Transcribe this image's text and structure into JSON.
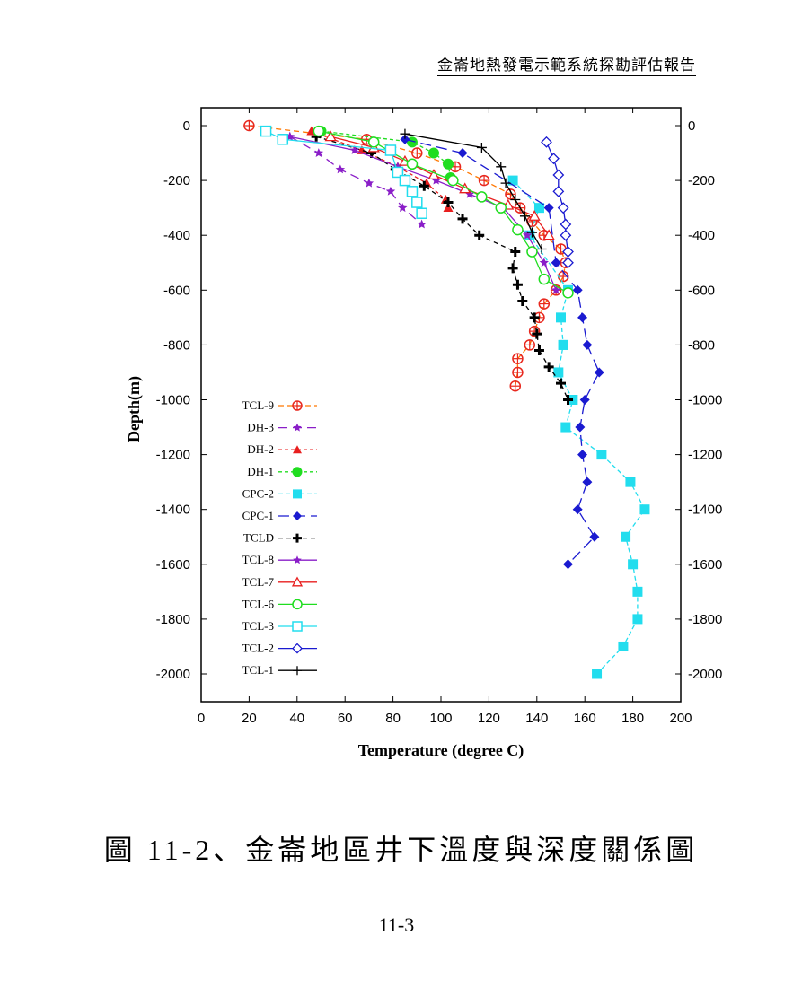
{
  "page": {
    "header": "金崙地熱發電示範系統探勘評估報告",
    "caption": "圖 11-2、金崙地區井下溫度與深度關係圖",
    "page_number": "11-3"
  },
  "chart_data": {
    "type": "scatter",
    "title": "",
    "xlabel": "Temperature (degree C)",
    "ylabel": "Depth(m)",
    "xlim": [
      0,
      200
    ],
    "ylim": [
      -2100,
      0
    ],
    "x_ticks": [
      0,
      20,
      40,
      60,
      80,
      100,
      120,
      140,
      160,
      180,
      200
    ],
    "y_ticks": [
      0,
      -200,
      -400,
      -600,
      -800,
      -1000,
      -1200,
      -1400,
      -1600,
      -1800,
      -2000
    ],
    "right_axis_mirrored": true,
    "grid": false,
    "legend_placement": "bottom-left",
    "series": [
      {
        "name": "TCL-9",
        "color": "#e8281e",
        "line_color": "#ff7700",
        "dash": "6,4",
        "marker": "circle-cross",
        "x": [
          20,
          69,
          90,
          106,
          118,
          129,
          133,
          138,
          143,
          150,
          152,
          151,
          148,
          143,
          141,
          139,
          137,
          132,
          132,
          131
        ],
        "y": [
          0,
          -50,
          -100,
          -150,
          -200,
          -250,
          -300,
          -350,
          -400,
          -450,
          -500,
          -550,
          -600,
          -650,
          -700,
          -750,
          -800,
          -850,
          -900,
          -950
        ]
      },
      {
        "name": "DH-3",
        "color": "#8a1ec8",
        "line_color": "#8a1ec8",
        "dash": "10,6",
        "marker": "star",
        "x": [
          37,
          49,
          58,
          70,
          79,
          84,
          92
        ],
        "y": [
          -40,
          -100,
          -160,
          -210,
          -240,
          -300,
          -360
        ]
      },
      {
        "name": "DH-2",
        "color": "#e81e1e",
        "line_color": "#e81e1e",
        "dash": "4,3",
        "marker": "triangle-filled",
        "x": [
          46,
          67,
          82,
          94,
          102,
          103
        ],
        "y": [
          -20,
          -90,
          -150,
          -210,
          -270,
          -300
        ]
      },
      {
        "name": "DH-1",
        "color": "#20dd20",
        "line_color": "#20dd20",
        "dash": "4,3",
        "marker": "circle-filled",
        "x": [
          50,
          88,
          97,
          103,
          104
        ],
        "y": [
          -20,
          -60,
          -100,
          -140,
          -190
        ]
      },
      {
        "name": "CPC-2",
        "color": "#22ddee",
        "line_color": "#22ddee",
        "dash": "5,3",
        "marker": "square-filled",
        "x": [
          130,
          141,
          137,
          153,
          150,
          151,
          151,
          149,
          155,
          152,
          167,
          179,
          185,
          177,
          180,
          182,
          182,
          176,
          165
        ],
        "y": [
          -200,
          -300,
          -400,
          -600,
          -700,
          -800,
          -800,
          -900,
          -1000,
          -1100,
          -1200,
          -1300,
          -1400,
          -1500,
          -1600,
          -1700,
          -1800,
          -1900,
          -2000
        ]
      },
      {
        "name": "CPC-1",
        "color": "#1a1ad0",
        "line_color": "#1a1ad0",
        "dash": "12,6",
        "marker": "diamond-filled",
        "x": [
          85,
          109,
          145,
          148,
          157,
          159,
          161,
          166,
          160,
          158,
          159,
          161,
          157,
          164,
          153
        ],
        "y": [
          -50,
          -100,
          -300,
          -500,
          -600,
          -700,
          -800,
          -900,
          -1000,
          -1100,
          -1200,
          -1300,
          -1400,
          -1500,
          -1600
        ]
      },
      {
        "name": "TCLD",
        "color": "#000000",
        "line_color": "#000000",
        "dash": "5,4",
        "marker": "plus-bold",
        "x": [
          48,
          71,
          81,
          93,
          103,
          109,
          116,
          131,
          130,
          132,
          134,
          139,
          140,
          141,
          145,
          150,
          153
        ],
        "y": [
          -40,
          -100,
          -160,
          -220,
          -280,
          -340,
          -400,
          -460,
          -520,
          -580,
          -640,
          -700,
          -760,
          -820,
          -880,
          -940,
          -1000
        ]
      },
      {
        "name": "TCL-8",
        "color": "#8a1ec8",
        "line_color": "#8a1ec8",
        "dash": "",
        "marker": "star",
        "x": [
          37,
          64,
          82,
          98,
          112,
          126,
          136,
          143,
          148
        ],
        "y": [
          -40,
          -90,
          -150,
          -200,
          -250,
          -300,
          -400,
          -500,
          -600
        ]
      },
      {
        "name": "TCL-7",
        "color": "#e81e1e",
        "line_color": "#e81e1e",
        "dash": "",
        "marker": "triangle-open",
        "x": [
          54,
          72,
          85,
          97,
          110,
          128,
          139,
          145
        ],
        "y": [
          -40,
          -80,
          -130,
          -180,
          -230,
          -290,
          -330,
          -400
        ]
      },
      {
        "name": "TCL-6",
        "color": "#20dd20",
        "line_color": "#20dd20",
        "dash": "",
        "marker": "circle-open",
        "x": [
          49,
          72,
          88,
          105,
          117,
          125,
          132,
          138,
          143,
          153
        ],
        "y": [
          -20,
          -60,
          -140,
          -200,
          -260,
          -300,
          -380,
          -460,
          -560,
          -610
        ]
      },
      {
        "name": "TCL-3",
        "color": "#22ddee",
        "line_color": "#22ddee",
        "dash": "",
        "marker": "square-open",
        "x": [
          27,
          34,
          79,
          82,
          85,
          88,
          90,
          92
        ],
        "y": [
          -20,
          -50,
          -90,
          -170,
          -200,
          -240,
          -280,
          -320
        ]
      },
      {
        "name": "TCL-2",
        "color": "#1a1ad0",
        "line_color": "#1a1ad0",
        "dash": "",
        "marker": "diamond-open",
        "x": [
          144,
          147,
          149,
          149,
          151,
          152,
          152,
          153,
          153
        ],
        "y": [
          -60,
          -120,
          -180,
          -240,
          -300,
          -360,
          -400,
          -460,
          -500
        ]
      },
      {
        "name": "TCL-1",
        "color": "#000000",
        "line_color": "#000000",
        "dash": "",
        "marker": "plus-thin",
        "x": [
          85,
          117,
          125,
          127,
          131,
          135,
          138,
          142
        ],
        "y": [
          -30,
          -80,
          -150,
          -210,
          -270,
          -330,
          -390,
          -450
        ]
      }
    ]
  }
}
